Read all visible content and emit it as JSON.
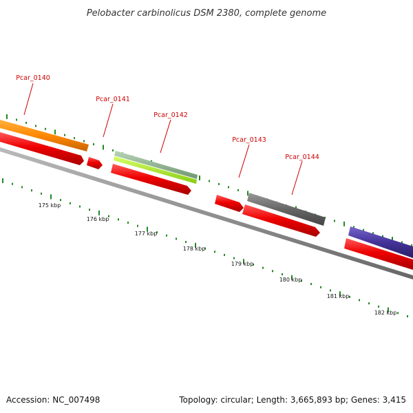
{
  "title": "Pelobacter carbinolicus DSM 2380, complete genome",
  "footer": {
    "accession": "Accession: NC_007498",
    "summary": "Topology: circular; Length: 3,665,893 bp; Genes: 3,415"
  },
  "genes": [
    "Pcar_0140",
    "Pcar_0141",
    "Pcar_0142",
    "Pcar_0143",
    "Pcar_0144"
  ],
  "scale_labels": [
    "175 kbp",
    "176 kbp",
    "177 kbp",
    "178 kbp",
    "179 kbp",
    "180 kbp",
    "181 kbp",
    "182 kbp"
  ],
  "colors": {
    "cds": "#ee0000",
    "gene_0140": "#ff8800",
    "gene_0142_a": "#8fb38f",
    "gene_0142_b": "#aaee33",
    "gene_0144": "#666666",
    "gene_next": "#443399",
    "backbone": "#888888",
    "ticks": "#228822",
    "label": "#cc0000"
  }
}
